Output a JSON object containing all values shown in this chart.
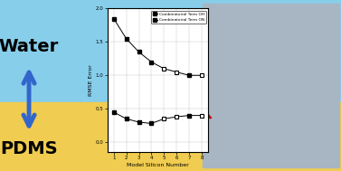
{
  "bg_top_color": "#87CEEB",
  "bg_bottom_color": "#F0CC50",
  "water_text": "Water",
  "pdms_text": "PDMS",
  "arrow_color": "#3366CC",
  "x_data": [
    1,
    2,
    3,
    4,
    5,
    6,
    7,
    8
  ],
  "y_off": [
    1.85,
    1.55,
    1.35,
    1.2,
    1.1,
    1.05,
    1.0,
    1.0
  ],
  "y_on": [
    0.45,
    0.35,
    0.3,
    0.28,
    0.35,
    0.38,
    0.4,
    0.4
  ],
  "open_indices_off": [
    4,
    5,
    7
  ],
  "open_indices_on": [
    4,
    5,
    7
  ],
  "xlabel": "Model Silicon Number",
  "ylabel": "RMSE Error",
  "legend_off": "Combinatorial Term Off",
  "legend_on": "Combinatorial Term ON",
  "ylim_min": -0.15,
  "ylim_max": 2.0,
  "xlim_min": 0.5,
  "xlim_max": 8.5,
  "ytick_vals": [
    0.0,
    0.5,
    1.0,
    1.5,
    2.0
  ],
  "ytick_labels": [
    "0.0",
    "0.5",
    "1.0",
    "1.5",
    "2.0"
  ],
  "xtick_vals": [
    1,
    2,
    3,
    4,
    5,
    6,
    7,
    8
  ],
  "mol_bg_color": "#A8B5C2",
  "arrow_curve_color": "#CC0000",
  "water_fontsize": 14,
  "pdms_fontsize": 14
}
